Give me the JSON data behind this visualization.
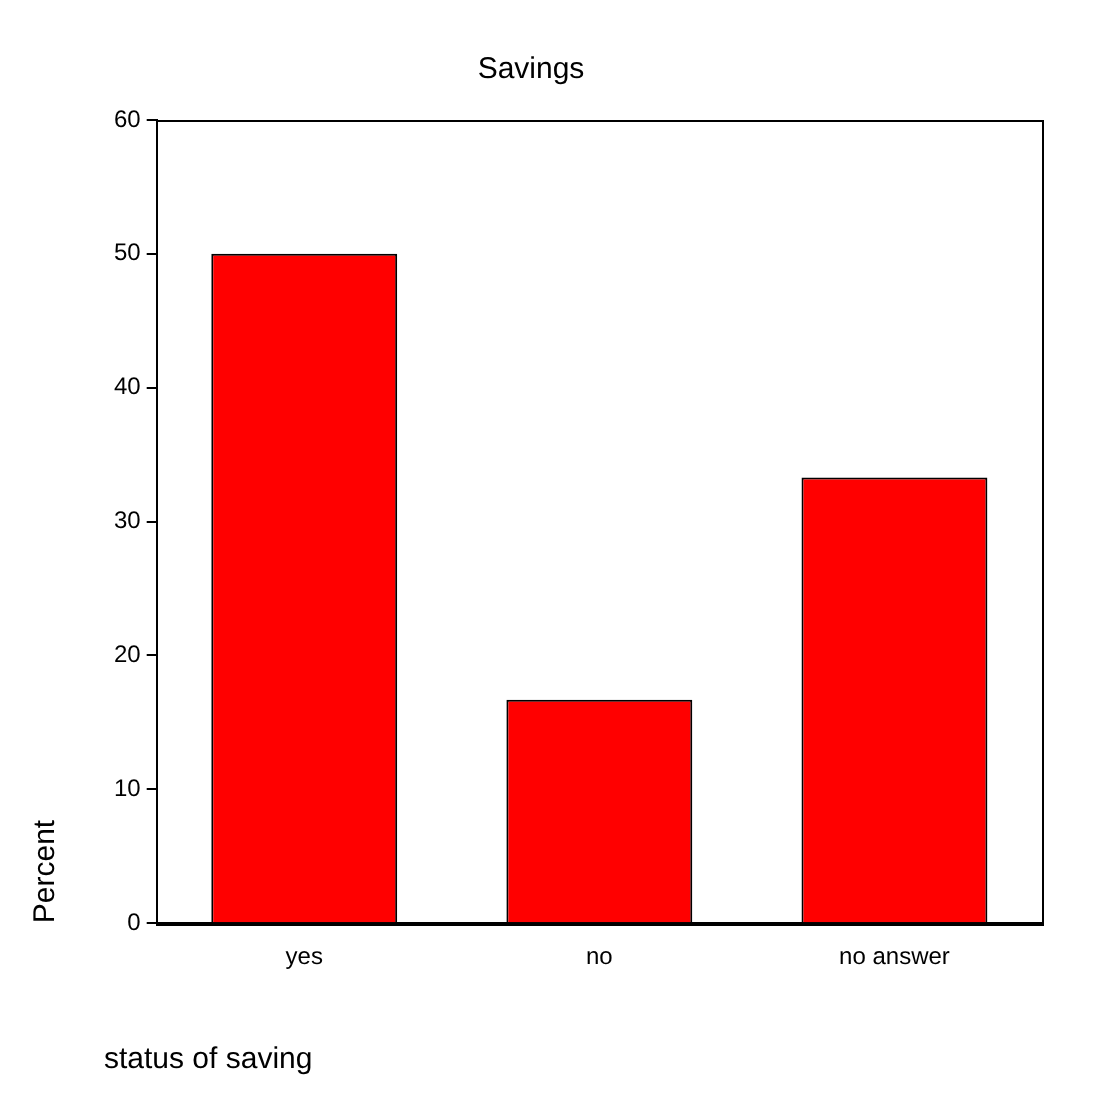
{
  "chart_data": {
    "type": "bar",
    "title": "Savings",
    "xlabel": "status of saving",
    "ylabel": "Percent",
    "categories": [
      "yes",
      "no",
      "no answer"
    ],
    "values": [
      50,
      16.7,
      33.3
    ],
    "color": "#ff0000",
    "ylim": [
      0,
      60
    ],
    "yticks": [
      0,
      10,
      20,
      30,
      40,
      50,
      60
    ],
    "grid": false,
    "legend": false
  }
}
